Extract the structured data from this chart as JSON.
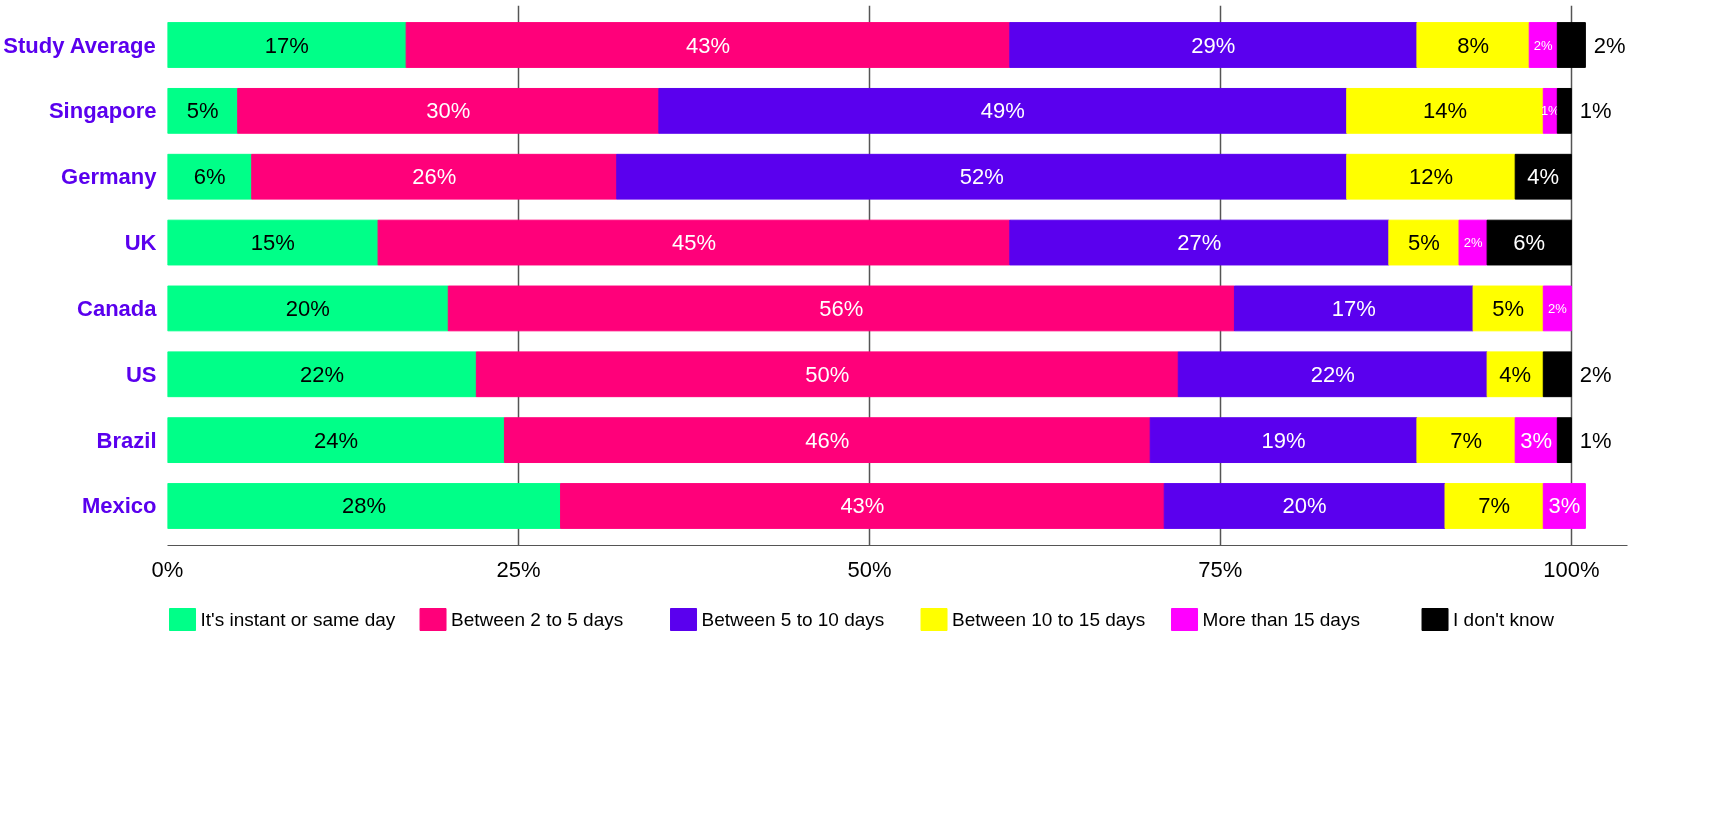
{
  "chart_data": {
    "type": "bar",
    "orientation": "horizontal",
    "stacked": true,
    "grid": "x",
    "legend": "bottom",
    "categories": [
      "Study Average",
      "Singapore",
      "Germany",
      "UK",
      "Canada",
      "US",
      "Brazil",
      "Mexico"
    ],
    "xlim": [
      0,
      104
    ],
    "xticks": [
      {
        "value": 0,
        "label": "0%"
      },
      {
        "value": 25,
        "label": "25%"
      },
      {
        "value": 50,
        "label": "50%"
      },
      {
        "value": 75,
        "label": "75%"
      },
      {
        "value": 100,
        "label": "100%"
      }
    ],
    "series": [
      {
        "name": "It's instant or same day",
        "color": "#00ff88",
        "values": [
          17,
          5,
          6,
          15,
          20,
          22,
          24,
          28
        ],
        "value_labels": [
          "17%",
          "5%",
          "6%",
          "15%",
          "20%",
          "22%",
          "24%",
          "28%"
        ]
      },
      {
        "name": "Between 2 to 5 days",
        "color": "#ff007a",
        "values": [
          43,
          30,
          26,
          45,
          56,
          50,
          46,
          43
        ],
        "value_labels": [
          "43%",
          "30%",
          "26%",
          "45%",
          "56%",
          "50%",
          "46%",
          "43%"
        ]
      },
      {
        "name": "Between 5 to 10 days",
        "color": "#5a00ee",
        "values": [
          29,
          49,
          52,
          27,
          17,
          22,
          19,
          20
        ],
        "value_labels": [
          "29%",
          "49%",
          "52%",
          "27%",
          "17%",
          "22%",
          "19%",
          "20%"
        ]
      },
      {
        "name": "Between 10 to 15 days",
        "color": "#ffff00",
        "values": [
          8,
          14,
          12,
          5,
          5,
          4,
          7,
          7
        ],
        "value_labels": [
          "8%",
          "14%",
          "12%",
          "5%",
          "5%",
          "4%",
          "7%",
          "7%"
        ]
      },
      {
        "name": "More than 15 days",
        "color": "#ff00ff",
        "values": [
          2,
          1,
          null,
          2,
          2,
          null,
          3,
          3
        ],
        "value_labels": [
          "2%",
          "1%",
          null,
          "2%",
          "2%",
          null,
          "3%",
          "3%"
        ]
      },
      {
        "name": "I don't know",
        "color": "#000000",
        "values": [
          2,
          1,
          4,
          6,
          null,
          2,
          1,
          null
        ],
        "value_labels": [
          "2%",
          "1%",
          "4%",
          "6%",
          null,
          "2%",
          "1%",
          null
        ]
      }
    ]
  }
}
